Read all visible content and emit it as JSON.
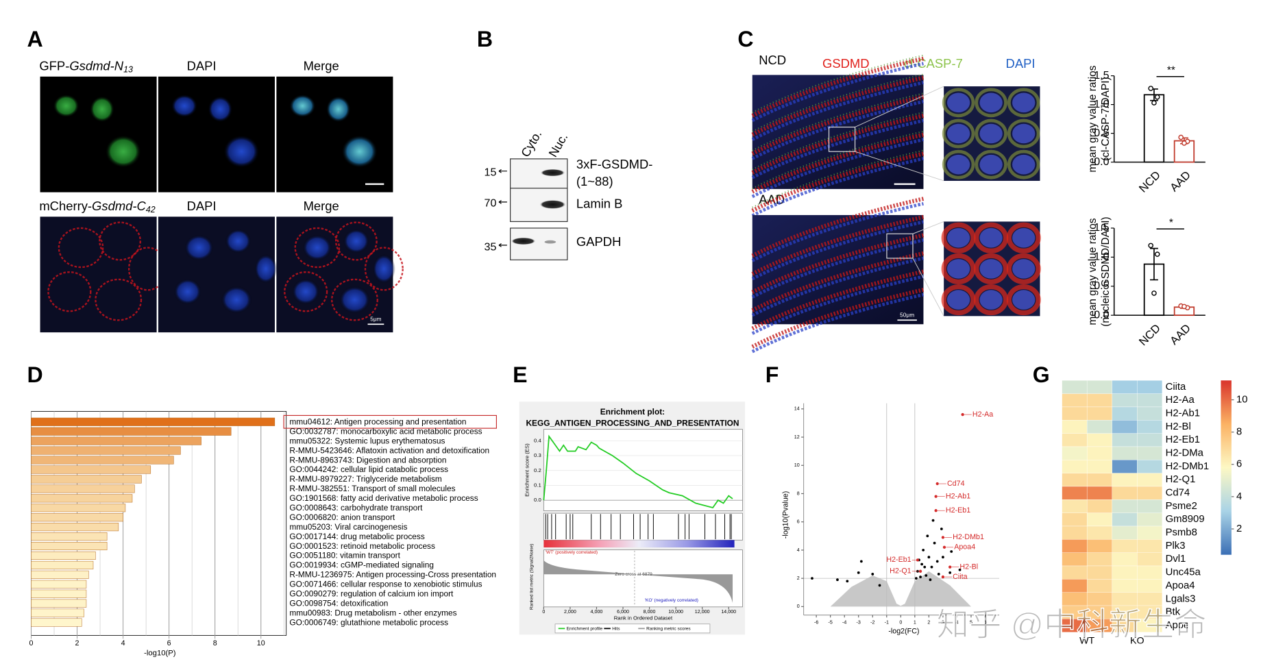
{
  "panel_labels": [
    "A",
    "B",
    "C",
    "D",
    "E",
    "F",
    "G"
  ],
  "A": {
    "rows": [
      {
        "channel": {
          "prefix": "GFP-",
          "gene": "Gsdmd-N",
          "sub": "13"
        },
        "dapi": "DAPI",
        "merge": "Merge"
      },
      {
        "channel": {
          "prefix": "mCherry-",
          "gene": "Gsdmd-C",
          "sub": "42"
        },
        "dapi": "DAPI",
        "merge": "Merge"
      }
    ],
    "scale_bar": "5μm"
  },
  "B": {
    "lanes": [
      "Cyto.",
      "Nuc."
    ],
    "markers": [
      "15",
      "70",
      "35"
    ],
    "bands": [
      [
        "3xF-GSDMD-",
        "(1~88)"
      ],
      [
        "Lamin B"
      ],
      [
        "GAPDH"
      ]
    ]
  },
  "C": {
    "rows": [
      "NCD",
      "AAD"
    ],
    "stains": [
      {
        "name": "GSDMD",
        "color": "#e0201b"
      },
      {
        "name": "cl-CASP-7",
        "color": "#8cc34a"
      },
      {
        "name": "DAPI",
        "color": "#1f5fc4"
      }
    ],
    "scale_bar": "50μm",
    "charts": [
      {
        "type": "bar",
        "ylabel": [
          "mean gray value ratios",
          "(cl-CASP-7/DAPI)"
        ],
        "categories": [
          "NCD",
          "AAD"
        ],
        "values": [
          1.17,
          0.37
        ],
        "errors": [
          0.1,
          0.05
        ],
        "points": [
          [
            1.28,
            1.13,
            1.03
          ],
          [
            0.43,
            0.36,
            0.33
          ]
        ],
        "colors": [
          "#000000",
          "#c0392b"
        ],
        "ylim": [
          0,
          1.5
        ],
        "yticks": [
          {
            "value": 0,
            "label": "0.0"
          },
          {
            "value": 0.5,
            "label": "0.5"
          },
          {
            "value": 1,
            "label": "1.0"
          },
          {
            "value": 1.5,
            "label": "1.5"
          }
        ],
        "significance": "**"
      },
      {
        "type": "bar",
        "ylabel": [
          "mean gray value ratios",
          "(nucleic GSDMD/DAPI)"
        ],
        "categories": [
          "NCD",
          "AAD"
        ],
        "values": [
          0.88,
          0.14
        ],
        "errors": [
          0.27,
          0.02
        ],
        "points": [
          [
            1.2,
            1.05,
            0.38
          ],
          [
            0.16,
            0.13,
            0.15
          ]
        ],
        "colors": [
          "#000000",
          "#c0392b"
        ],
        "ylim": [
          0,
          1.5
        ],
        "yticks": [
          {
            "value": 0,
            "label": "0.0"
          },
          {
            "value": 0.5,
            "label": "0.5"
          },
          {
            "value": 1,
            "label": "1.0"
          },
          {
            "value": 1.5,
            "label": "1.5"
          }
        ],
        "significance": "*"
      }
    ]
  },
  "D": {
    "type": "bar",
    "orientation": "horizontal",
    "categories": [
      "mmu04612: Antigen processing and presentation",
      "GO:0032787: monocarboxylic acid metabolic process",
      "mmu05322: Systemic lupus erythematosus",
      "R-MMU-5423646: Aflatoxin activation and detoxification",
      "R-MMU-8963743: Digestion and absorption",
      "GO:0044242: cellular lipid catabolic process",
      "R-MMU-8979227: Triglyceride metabolism",
      "R-MMU-382551: Transport of small molecules",
      "GO:1901568: fatty acid derivative metabolic process",
      "GO:0008643: carbohydrate transport",
      "GO:0006820: anion transport",
      "mmu05203: Viral carcinogenesis",
      "GO:0017144: drug metabolic process",
      "GO:0001523: retinoid metabolic process",
      "GO:0051180: vitamin transport",
      "GO:0019934: cGMP-mediated signaling",
      "R-MMU-1236975: Antigen processing-Cross presentation",
      "GO:0071466: cellular response to xenobiotic stimulus",
      "GO:0090279: regulation of calcium ion import",
      "GO:0098754: detoxification",
      "mmu00983: Drug metabolism - other enzymes",
      "GO:0006749: glutathione metabolic process"
    ],
    "values": [
      10.6,
      8.7,
      7.4,
      6.5,
      6.2,
      5.2,
      4.8,
      4.5,
      4.4,
      4.1,
      4.0,
      3.8,
      3.3,
      3.3,
      2.8,
      2.7,
      2.5,
      2.4,
      2.4,
      2.4,
      2.3,
      2.2
    ],
    "xlim": [
      0,
      11.1
    ],
    "xticks": [
      0,
      2,
      4,
      6,
      8,
      10
    ],
    "xlabel": "-log10(P)",
    "color_range": [
      "#e0701a",
      "#fff6cc"
    ],
    "highlight": 0,
    "grid": true
  },
  "E": {
    "type": "line",
    "title": [
      "Enrichment plot:",
      "KEGG_ANTIGEN_PROCESSING_AND_PRESENTATION"
    ],
    "ylabel": "Enrichment score (ES)",
    "ylabel2": "Ranked list metric (Signal2Noise)",
    "xlabel": "Rank in Ordered Dataset",
    "rank": [
      0,
      200,
      400,
      800,
      1200,
      1500,
      1800,
      2400,
      2600,
      3200,
      3600,
      4000,
      4200,
      5200,
      6000,
      7000,
      8000,
      9000,
      9500,
      10500,
      11500,
      12800,
      13200,
      13600,
      14000,
      14300
    ],
    "es": [
      0,
      0.2,
      0.43,
      0.38,
      0.33,
      0.37,
      0.33,
      0.33,
      0.36,
      0.34,
      0.39,
      0.37,
      0.35,
      0.3,
      0.25,
      0.18,
      0.13,
      0.07,
      0.05,
      0.03,
      -0.02,
      -0.05,
      0.0,
      -0.02,
      0.03,
      0.01
    ],
    "hits": [
      150,
      300,
      600,
      900,
      1700,
      2000,
      2200,
      3600,
      4300,
      5100,
      5800,
      6800,
      7300,
      7900,
      8300,
      10200,
      10700,
      11000,
      12200,
      13000,
      13700,
      14100,
      14200
    ],
    "xlim": [
      0,
      15050
    ],
    "ylim": [
      -0.071,
      0.477
    ],
    "xticks": [
      0,
      {
        "value": 2000,
        "label": "2,000"
      },
      {
        "value": 4000,
        "label": "4,000"
      },
      {
        "value": 6000,
        "label": "6,000"
      },
      {
        "value": 8000,
        "label": "8,000"
      },
      {
        "value": 10000,
        "label": "10,000"
      },
      {
        "value": 12000,
        "label": "12,000"
      },
      {
        "value": 14000,
        "label": "14,000"
      }
    ],
    "yticks": [
      {
        "value": 0,
        "label": "0.0"
      },
      0.1,
      0.2,
      0.3,
      0.4
    ],
    "zero_cross": 6879,
    "zero_cross_label": "Zero cross at 6879",
    "pos_label": "'WT' (positively correlated)",
    "neg_label": "'KO' (negatively correlated)",
    "legend": [
      "Enrichment profile",
      "Hits",
      "Ranking metric scores"
    ],
    "color": "#22cc22"
  },
  "F": {
    "type": "scatter",
    "xlabel": "-log2(FC)",
    "ylabel": "-log10(Pvalue)",
    "xlim": [
      -6.9,
      7
    ],
    "ylim": [
      -0.6,
      14.4
    ],
    "xticks": [
      -6,
      -5,
      -4,
      -3,
      -2,
      -1,
      0,
      1,
      2,
      3,
      4,
      5,
      6
    ],
    "yticks": [
      0,
      2,
      4,
      6,
      8,
      10,
      12,
      14
    ],
    "thresholds": {
      "fc": [
        -1,
        1
      ],
      "p": 2
    },
    "points": {
      "x": [
        -4.5,
        -3.8,
        -2.8,
        -3.0,
        -2.0,
        -6.3,
        -1.5,
        1.2,
        1.5,
        1.8,
        2.0,
        2.2,
        2.4,
        2.6,
        1.4,
        3.0,
        3.5,
        1.6,
        2.9,
        1.3,
        2.1,
        2.7,
        3.6,
        4.2,
        1.9,
        1.1,
        2.3,
        1.7
      ],
      "y": [
        1.9,
        1.8,
        3.2,
        2.4,
        2.3,
        2.0,
        1.5,
        2.5,
        3.0,
        2.2,
        3.5,
        2.8,
        4.5,
        3.2,
        2.1,
        3.5,
        2.4,
        4.0,
        5.5,
        3.3,
        1.9,
        2.3,
        3.9,
        2.6,
        5.0,
        2.0,
        6.1,
        2.8
      ]
    },
    "labeled": [
      {
        "label": "H2-Aa",
        "x": 4.4,
        "y": 13.6
      },
      {
        "label": "Cd74",
        "x": 2.6,
        "y": 8.7
      },
      {
        "label": "H2-Ab1",
        "x": 2.5,
        "y": 7.8
      },
      {
        "label": "H2-Eb1",
        "x": 2.5,
        "y": 6.8
      },
      {
        "label": "H2-DMb1",
        "x": 3.0,
        "y": 4.9
      },
      {
        "label": "Apoa4",
        "x": 3.1,
        "y": 4.2
      },
      {
        "label": "H2-Bl",
        "x": 3.5,
        "y": 2.8
      },
      {
        "label": "Ciita",
        "x": 3.0,
        "y": 2.1
      },
      {
        "label": "H2-Eb1",
        "x": 1.2,
        "y": 3.3
      },
      {
        "label": "H2-Q1",
        "x": 1.4,
        "y": 2.5
      }
    ],
    "point_color": "#000000",
    "label_color": "#d42a2a"
  },
  "G": {
    "type": "heatmap",
    "rows": [
      "Ciita",
      "H2-Aa",
      "H2-Ab1",
      "H2-Bl",
      "H2-Eb1",
      "H2-DMa",
      "H2-DMb1",
      "H2-Q1",
      "Cd74",
      "Psme2",
      "Gm8909",
      "Psmb8",
      "Plk3",
      "Dvl1",
      "Unc45a",
      "Apoa4",
      "Lgals3",
      "Btk",
      "Apoe"
    ],
    "groups": [
      "WT",
      "KO"
    ],
    "values": [
      [
        4.5,
        4.5,
        3,
        3
      ],
      [
        7,
        7,
        4,
        4
      ],
      [
        7,
        7,
        3.5,
        4
      ],
      [
        6,
        4.5,
        2.5,
        3.5
      ],
      [
        6.5,
        6,
        4,
        4
      ],
      [
        5.5,
        6,
        4.5,
        4.5
      ],
      [
        6,
        6,
        1.5,
        3.5
      ],
      [
        7,
        7,
        6,
        6
      ],
      [
        9.5,
        9.5,
        7,
        7
      ],
      [
        6.5,
        7,
        4.5,
        4.5
      ],
      [
        7,
        6,
        4,
        5
      ],
      [
        7,
        6.5,
        5,
        5.5
      ],
      [
        9,
        8,
        6.5,
        6.5
      ],
      [
        8,
        7,
        6,
        6.5
      ],
      [
        7,
        7,
        6,
        6
      ],
      [
        9,
        7,
        6,
        6
      ],
      [
        8,
        7.5,
        6.5,
        6.5
      ],
      [
        7.5,
        7.5,
        6.5,
        6.5
      ],
      [
        10,
        9,
        7,
        6
      ]
    ],
    "clim": [
      0.4,
      11.2
    ],
    "cticks": [
      2,
      4,
      6,
      8,
      10
    ],
    "colorscale": [
      "#3b6fb5",
      "#a9d3e6",
      "#fdf8c4",
      "#fbb264",
      "#d9342b"
    ]
  },
  "watermark": "知乎 @中科新生命"
}
